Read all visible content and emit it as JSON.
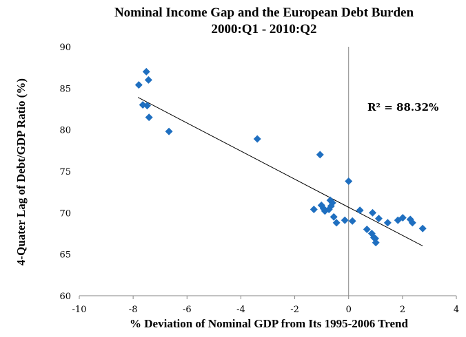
{
  "chart_data": {
    "type": "scatter",
    "title": "Nominal Income Gap and the European Debt Burden",
    "subtitle": "2000:Q1 - 2010:Q2",
    "xlabel": "% Deviation of Nominal GDP from Its 1995-2006 Trend",
    "ylabel": "4-Quater Lag of Debt/GDP Ratio (%)",
    "xlim": [
      -10,
      4
    ],
    "ylim": [
      60,
      90
    ],
    "xticks": [
      -10,
      -8,
      -6,
      -4,
      -2,
      0,
      2,
      4
    ],
    "yticks": [
      60,
      65,
      70,
      75,
      80,
      85,
      90
    ],
    "grid": false,
    "legend": "none",
    "marker_color": "#1f6fc0",
    "marker": "diamond",
    "points": [
      [
        -7.51,
        87.0
      ],
      [
        -7.43,
        86.0
      ],
      [
        -7.79,
        85.4
      ],
      [
        -7.64,
        83.0
      ],
      [
        -7.48,
        82.9
      ],
      [
        -7.41,
        81.5
      ],
      [
        -6.67,
        79.8
      ],
      [
        -3.39,
        78.9
      ],
      [
        -1.06,
        77.0
      ],
      [
        0.0,
        73.8
      ],
      [
        -1.29,
        70.4
      ],
      [
        -1.01,
        70.9
      ],
      [
        -0.93,
        70.5
      ],
      [
        -0.88,
        70.2
      ],
      [
        -0.68,
        71.5
      ],
      [
        -0.6,
        71.2
      ],
      [
        -0.65,
        70.8
      ],
      [
        -0.73,
        70.4
      ],
      [
        -0.55,
        69.5
      ],
      [
        -0.45,
        68.8
      ],
      [
        -0.14,
        69.1
      ],
      [
        0.14,
        69.0
      ],
      [
        0.42,
        70.3
      ],
      [
        0.89,
        70.0
      ],
      [
        1.12,
        69.3
      ],
      [
        1.45,
        68.8
      ],
      [
        0.68,
        68.0
      ],
      [
        0.86,
        67.5
      ],
      [
        0.94,
        67.0
      ],
      [
        0.99,
        66.9
      ],
      [
        1.01,
        66.4
      ],
      [
        1.83,
        69.1
      ],
      [
        2.01,
        69.4
      ],
      [
        2.29,
        69.2
      ],
      [
        2.37,
        68.8
      ],
      [
        2.75,
        68.1
      ]
    ],
    "trendline": {
      "x": [
        -7.82,
        2.75
      ],
      "y": [
        83.9,
        66.0
      ]
    },
    "reference_line_x": 0,
    "annotation": "R² = 88.32%"
  }
}
